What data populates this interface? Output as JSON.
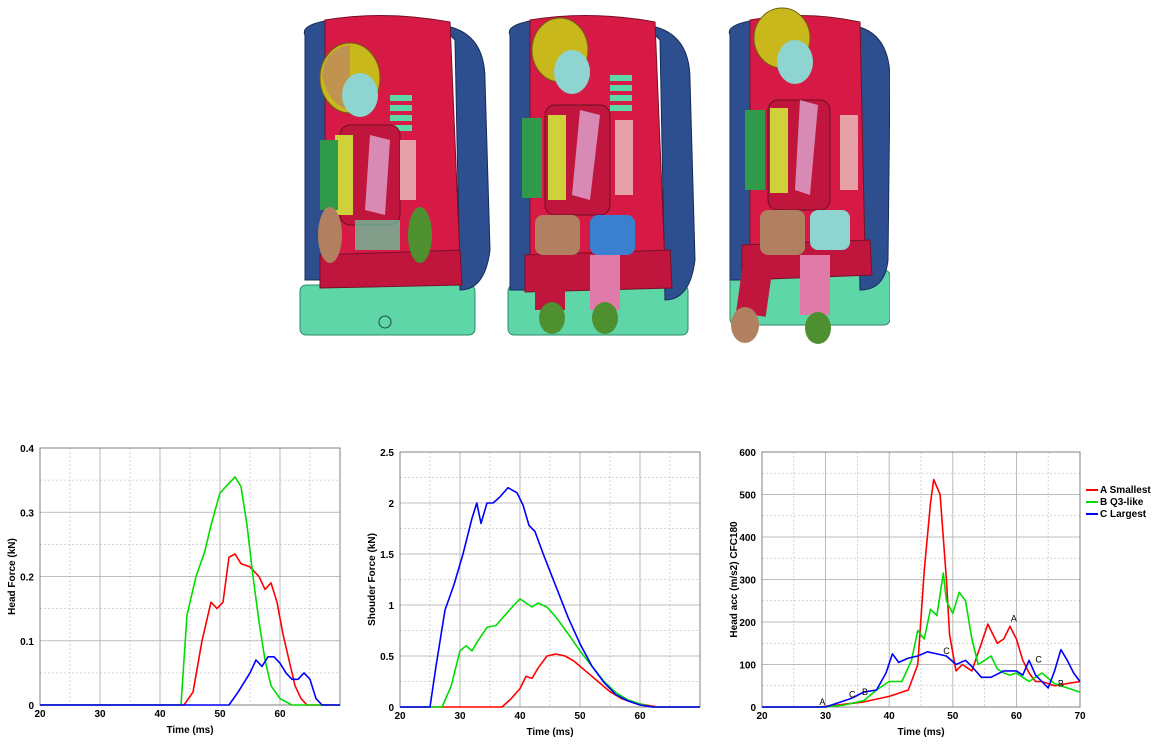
{
  "illustration": {
    "description_icon": "child-dummy-seat-icon"
  },
  "charts": {
    "legend": [
      {
        "label": "A  Smallest",
        "color": "#ff0000"
      },
      {
        "label": "B  Q3-like",
        "color": "#00dd00"
      },
      {
        "label": "C  Largest",
        "color": "#0000ff"
      }
    ]
  },
  "chart_data": [
    {
      "type": "line",
      "xlabel": "Time (ms)",
      "ylabel": "Head Force (kN)",
      "xlim": [
        20,
        70
      ],
      "ylim": [
        0,
        0.4
      ],
      "xticks": [
        20,
        30,
        40,
        50,
        60
      ],
      "yticks": [
        0,
        0.1,
        0.2,
        0.3,
        0.4
      ],
      "ytick_labels": [
        "0",
        "0.1",
        "0.2",
        "0.3",
        "0.4"
      ],
      "grid": true,
      "series": [
        {
          "name": "A  Smallest",
          "color": "#ff0000",
          "x": [
            20,
            44,
            45.5,
            47,
            48.5,
            49.5,
            50.5,
            51.5,
            52.5,
            53.5,
            55,
            56.5,
            57.5,
            58.5,
            59.5,
            60.5,
            61.5,
            62.5,
            63.5,
            64.5,
            70
          ],
          "y": [
            0,
            0,
            0.02,
            0.1,
            0.16,
            0.15,
            0.16,
            0.23,
            0.235,
            0.22,
            0.215,
            0.2,
            0.18,
            0.19,
            0.16,
            0.11,
            0.07,
            0.03,
            0.01,
            0,
            0
          ]
        },
        {
          "name": "B  Q3-like",
          "color": "#00dd00",
          "x": [
            20,
            43.5,
            44.5,
            46,
            47.5,
            48.5,
            50,
            51.5,
            52.5,
            53.5,
            54.5,
            55.5,
            56.5,
            57.5,
            58.5,
            60,
            61,
            62,
            70
          ],
          "y": [
            0,
            0,
            0.14,
            0.2,
            0.24,
            0.28,
            0.33,
            0.345,
            0.355,
            0.34,
            0.28,
            0.2,
            0.13,
            0.07,
            0.03,
            0.01,
            0.005,
            0,
            0
          ]
        },
        {
          "name": "C  Largest",
          "color": "#0000ff",
          "x": [
            20,
            51.5,
            53,
            55,
            56,
            57,
            58,
            59,
            60,
            61,
            62,
            63,
            64,
            65,
            66,
            67,
            70
          ],
          "y": [
            0,
            0,
            0.02,
            0.05,
            0.07,
            0.06,
            0.075,
            0.075,
            0.065,
            0.05,
            0.04,
            0.04,
            0.05,
            0.04,
            0.01,
            0,
            0
          ]
        }
      ]
    },
    {
      "type": "line",
      "xlabel": "Time (ms)",
      "ylabel": "Shouder Force (kN)",
      "xlim": [
        20,
        70
      ],
      "ylim": [
        0,
        2.5
      ],
      "xticks": [
        20,
        30,
        40,
        50,
        60
      ],
      "yticks": [
        0,
        0.5,
        1,
        1.5,
        2,
        2.5
      ],
      "ytick_labels": [
        "0",
        "0.5",
        "1",
        "1.5",
        "2",
        "2.5"
      ],
      "grid": true,
      "series": [
        {
          "name": "A  Smallest",
          "color": "#ff0000",
          "x": [
            20,
            37,
            38.5,
            40,
            41,
            42,
            43,
            44.5,
            46,
            47.5,
            49,
            51,
            53,
            55,
            57,
            59,
            61,
            63,
            70
          ],
          "y": [
            0,
            0,
            0.08,
            0.18,
            0.3,
            0.28,
            0.38,
            0.5,
            0.52,
            0.5,
            0.45,
            0.35,
            0.25,
            0.15,
            0.08,
            0.04,
            0.02,
            0,
            0
          ]
        },
        {
          "name": "B  Q3-like",
          "color": "#00dd00",
          "x": [
            20,
            27,
            28.5,
            30,
            31,
            32,
            33,
            34.5,
            36,
            37.5,
            39,
            40,
            41,
            42,
            43,
            44.5,
            46,
            48,
            50,
            52,
            54,
            56,
            58,
            60,
            62,
            70
          ],
          "y": [
            0,
            0,
            0.2,
            0.55,
            0.6,
            0.55,
            0.65,
            0.78,
            0.8,
            0.9,
            1.0,
            1.06,
            1.02,
            0.98,
            1.02,
            0.98,
            0.88,
            0.72,
            0.55,
            0.4,
            0.25,
            0.14,
            0.07,
            0.03,
            0,
            0
          ]
        },
        {
          "name": "C  Largest",
          "color": "#0000ff",
          "x": [
            20,
            25,
            26,
            27.5,
            29,
            30.5,
            32,
            32.8,
            33.5,
            34.5,
            35.5,
            36.5,
            38,
            39.5,
            40.5,
            41.5,
            42.5,
            44,
            46,
            48,
            50,
            52,
            54,
            56,
            58,
            60,
            62,
            70
          ],
          "y": [
            0,
            0,
            0.4,
            0.95,
            1.2,
            1.5,
            1.85,
            2.0,
            1.8,
            2.0,
            2.0,
            2.05,
            2.15,
            2.1,
            1.98,
            1.78,
            1.72,
            1.48,
            1.18,
            0.88,
            0.62,
            0.4,
            0.24,
            0.12,
            0.06,
            0.02,
            0,
            0
          ]
        }
      ]
    },
    {
      "type": "line",
      "xlabel": "Time (ms)",
      "ylabel": "Head acc (m/s2) CFC180",
      "xlim": [
        20,
        70
      ],
      "ylim": [
        0,
        600
      ],
      "xticks": [
        20,
        30,
        40,
        50,
        60,
        70
      ],
      "yticks": [
        0,
        100,
        200,
        300,
        400,
        500,
        600
      ],
      "ytick_labels": [
        "0",
        "100",
        "200",
        "300",
        "400",
        "500",
        "600"
      ],
      "grid": true,
      "legend_position": "right",
      "series": [
        {
          "name": "A  Smallest",
          "color": "#ff0000",
          "x": [
            20,
            29,
            32,
            36,
            40,
            43,
            44.5,
            45.5,
            46.5,
            47,
            48,
            49,
            49.5,
            50.5,
            51.5,
            53,
            54.5,
            55.5,
            57,
            58,
            59,
            60,
            61,
            62,
            63,
            64,
            65,
            66,
            68,
            70
          ],
          "y": [
            0,
            0,
            5,
            12,
            25,
            40,
            100,
            320,
            480,
            535,
            500,
            300,
            170,
            85,
            100,
            85,
            150,
            195,
            150,
            160,
            190,
            160,
            110,
            80,
            60,
            60,
            55,
            50,
            55,
            60
          ]
        },
        {
          "name": "B  Q3-like",
          "color": "#00dd00",
          "x": [
            20,
            30,
            33,
            36,
            38,
            40,
            42,
            43.5,
            44.5,
            45.5,
            46.5,
            47.5,
            48.5,
            49,
            50,
            51,
            52,
            53,
            54,
            55,
            56,
            57,
            58,
            59,
            60,
            62,
            64,
            66,
            68,
            70
          ],
          "y": [
            0,
            0,
            5,
            15,
            40,
            60,
            60,
            110,
            180,
            160,
            230,
            215,
            315,
            250,
            220,
            270,
            250,
            160,
            100,
            110,
            120,
            90,
            80,
            75,
            80,
            60,
            80,
            55,
            45,
            35
          ]
        },
        {
          "name": "C  Largest",
          "color": "#0000ff",
          "x": [
            20,
            30,
            34,
            36,
            38,
            39.5,
            40.5,
            41.5,
            43,
            44.5,
            46,
            47.5,
            49,
            50.5,
            52,
            53,
            54.5,
            56,
            58,
            60,
            61,
            62,
            63,
            64,
            65,
            66,
            67,
            68,
            69,
            70
          ],
          "y": [
            0,
            0,
            20,
            35,
            40,
            80,
            125,
            105,
            115,
            120,
            130,
            125,
            120,
            100,
            110,
            95,
            70,
            70,
            85,
            85,
            75,
            110,
            75,
            60,
            45,
            85,
            135,
            110,
            80,
            60
          ]
        }
      ],
      "markers": [
        {
          "label": "A",
          "x": 29.5,
          "y": 0
        },
        {
          "label": "C",
          "x": 34.2,
          "y": 18
        },
        {
          "label": "B",
          "x": 36.2,
          "y": 24
        },
        {
          "label": "C",
          "x": 49,
          "y": 120
        },
        {
          "label": "A",
          "x": 59.6,
          "y": 196
        },
        {
          "label": "C",
          "x": 63.5,
          "y": 100
        },
        {
          "label": "B",
          "x": 67,
          "y": 44
        }
      ]
    }
  ]
}
